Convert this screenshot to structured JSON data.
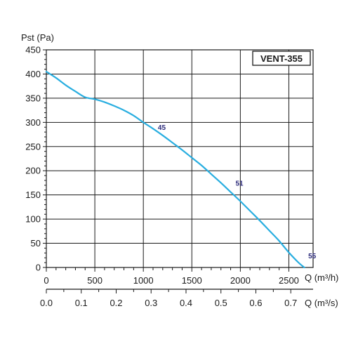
{
  "chart_data": {
    "type": "line",
    "model_label": "VENT-355",
    "ylabel": "Pst (Pa)",
    "xlabel_primary": "Q (m³/h)",
    "xlabel_secondary": "Q (m³/s)",
    "ylim": [
      0,
      450
    ],
    "xlim": [
      0,
      2750
    ],
    "y_ticks": [
      0,
      50,
      100,
      150,
      200,
      250,
      300,
      350,
      400,
      450
    ],
    "x_ticks_primary": [
      0,
      500,
      1000,
      1500,
      2000,
      2500
    ],
    "x_ticks_secondary": [
      "0.0",
      "0.1",
      "0.2",
      "0.3",
      "0.4",
      "0.5",
      "0.6",
      "0.7"
    ],
    "grid": true,
    "color": "#29aee0",
    "series": [
      {
        "x": [
          0,
          100,
          200,
          300,
          400,
          500,
          600,
          700,
          800,
          900,
          1000,
          1100,
          1200,
          1300,
          1400,
          1500,
          1600,
          1700,
          1800,
          1900,
          2000,
          2100,
          2200,
          2300,
          2400,
          2500,
          2600,
          2660
        ],
        "y": [
          405,
          392,
          377,
          364,
          352,
          348,
          342,
          334,
          325,
          314,
          300,
          287,
          273,
          258,
          243,
          227,
          211,
          193,
          175,
          156,
          137,
          117,
          97,
          76,
          55,
          31,
          10,
          0
        ]
      }
    ],
    "annotations": [
      {
        "text": "45",
        "x": 1150,
        "y": 290
      },
      {
        "text": "51",
        "x": 1950,
        "y": 175
      },
      {
        "text": "55",
        "x": 2700,
        "y": 25
      }
    ]
  }
}
